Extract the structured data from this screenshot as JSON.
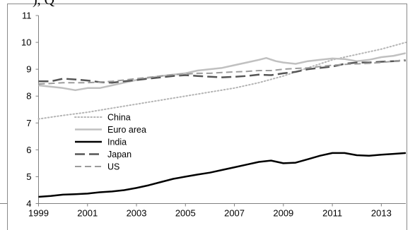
{
  "chart_data": {
    "type": "line",
    "title": "",
    "xlabel": "",
    "ylabel": "",
    "xlim": [
      1999,
      2014
    ],
    "ylim": [
      4,
      11
    ],
    "xticks": [
      "1999",
      "2001",
      "2003",
      "2005",
      "2007",
      "2009",
      "2011",
      "2013"
    ],
    "yticks": [
      "4",
      "5",
      "6",
      "7",
      "8",
      "9",
      "10",
      "11"
    ],
    "grid": false,
    "legend": "center-left",
    "top_fragment": "), Q",
    "series": [
      {
        "name": "China",
        "color": "#b4b4b4",
        "style": "dotted",
        "points": [
          [
            1999,
            7.15
          ],
          [
            2000,
            7.28
          ],
          [
            2001,
            7.4
          ],
          [
            2002,
            7.55
          ],
          [
            2003,
            7.7
          ],
          [
            2004,
            7.85
          ],
          [
            2005,
            8.0
          ],
          [
            2006,
            8.15
          ],
          [
            2007,
            8.3
          ],
          [
            2008,
            8.5
          ],
          [
            2009,
            8.75
          ],
          [
            2010,
            9.05
          ],
          [
            2011,
            9.35
          ],
          [
            2012,
            9.55
          ],
          [
            2013,
            9.75
          ],
          [
            2014,
            10.0
          ]
        ]
      },
      {
        "name": "Euro area",
        "color": "#c0c0c0",
        "style": "solid",
        "points": [
          [
            1999,
            8.4
          ],
          [
            1999.5,
            8.35
          ],
          [
            2000,
            8.3
          ],
          [
            2000.5,
            8.22
          ],
          [
            2001,
            8.3
          ],
          [
            2001.5,
            8.3
          ],
          [
            2002,
            8.4
          ],
          [
            2002.5,
            8.5
          ],
          [
            2003,
            8.6
          ],
          [
            2003.5,
            8.68
          ],
          [
            2004,
            8.75
          ],
          [
            2004.5,
            8.8
          ],
          [
            2005,
            8.85
          ],
          [
            2005.5,
            8.95
          ],
          [
            2006,
            9.0
          ],
          [
            2006.5,
            9.05
          ],
          [
            2007,
            9.15
          ],
          [
            2007.5,
            9.25
          ],
          [
            2008,
            9.35
          ],
          [
            2008.3,
            9.42
          ],
          [
            2008.7,
            9.3
          ],
          [
            2009,
            9.25
          ],
          [
            2009.5,
            9.2
          ],
          [
            2010,
            9.3
          ],
          [
            2010.5,
            9.35
          ],
          [
            2011,
            9.4
          ],
          [
            2011.5,
            9.38
          ],
          [
            2012,
            9.3
          ],
          [
            2012.5,
            9.35
          ],
          [
            2013,
            9.45
          ],
          [
            2013.5,
            9.5
          ],
          [
            2014,
            9.6
          ]
        ]
      },
      {
        "name": "India",
        "color": "#000000",
        "style": "solid",
        "points": [
          [
            1999,
            4.25
          ],
          [
            1999.5,
            4.28
          ],
          [
            2000,
            4.33
          ],
          [
            2000.5,
            4.35
          ],
          [
            2001,
            4.37
          ],
          [
            2001.5,
            4.42
          ],
          [
            2002,
            4.45
          ],
          [
            2002.5,
            4.5
          ],
          [
            2003,
            4.58
          ],
          [
            2003.5,
            4.68
          ],
          [
            2004,
            4.8
          ],
          [
            2004.5,
            4.92
          ],
          [
            2005,
            5.0
          ],
          [
            2005.5,
            5.08
          ],
          [
            2006,
            5.15
          ],
          [
            2006.5,
            5.25
          ],
          [
            2007,
            5.35
          ],
          [
            2007.5,
            5.45
          ],
          [
            2008,
            5.55
          ],
          [
            2008.5,
            5.6
          ],
          [
            2009,
            5.5
          ],
          [
            2009.5,
            5.52
          ],
          [
            2010,
            5.65
          ],
          [
            2010.5,
            5.78
          ],
          [
            2011,
            5.88
          ],
          [
            2011.5,
            5.88
          ],
          [
            2012,
            5.8
          ],
          [
            2012.5,
            5.78
          ],
          [
            2013,
            5.82
          ],
          [
            2013.5,
            5.85
          ],
          [
            2014,
            5.88
          ]
        ]
      },
      {
        "name": "Japan",
        "color": "#555555",
        "style": "longdash",
        "points": [
          [
            1999,
            8.55
          ],
          [
            1999.5,
            8.55
          ],
          [
            2000,
            8.65
          ],
          [
            2000.5,
            8.62
          ],
          [
            2001,
            8.58
          ],
          [
            2001.5,
            8.52
          ],
          [
            2002,
            8.5
          ],
          [
            2002.5,
            8.55
          ],
          [
            2003,
            8.6
          ],
          [
            2003.5,
            8.65
          ],
          [
            2004,
            8.7
          ],
          [
            2004.5,
            8.75
          ],
          [
            2005,
            8.78
          ],
          [
            2005.5,
            8.75
          ],
          [
            2006,
            8.72
          ],
          [
            2006.5,
            8.7
          ],
          [
            2007,
            8.72
          ],
          [
            2007.5,
            8.75
          ],
          [
            2008,
            8.8
          ],
          [
            2008.5,
            8.78
          ],
          [
            2009,
            8.85
          ],
          [
            2009.5,
            8.9
          ],
          [
            2010,
            9.0
          ],
          [
            2010.5,
            9.05
          ],
          [
            2011,
            9.1
          ],
          [
            2011.5,
            9.2
          ],
          [
            2012,
            9.25
          ],
          [
            2012.5,
            9.25
          ],
          [
            2013,
            9.28
          ],
          [
            2013.5,
            9.3
          ],
          [
            2014,
            9.33
          ]
        ]
      },
      {
        "name": "US",
        "color": "#9c9c9c",
        "style": "dashed",
        "points": [
          [
            1999,
            8.45
          ],
          [
            1999.5,
            8.47
          ],
          [
            2000,
            8.5
          ],
          [
            2000.5,
            8.5
          ],
          [
            2001,
            8.5
          ],
          [
            2001.5,
            8.52
          ],
          [
            2002,
            8.55
          ],
          [
            2002.5,
            8.6
          ],
          [
            2003,
            8.65
          ],
          [
            2003.5,
            8.7
          ],
          [
            2004,
            8.75
          ],
          [
            2004.5,
            8.8
          ],
          [
            2005,
            8.82
          ],
          [
            2005.5,
            8.85
          ],
          [
            2006,
            8.85
          ],
          [
            2006.5,
            8.88
          ],
          [
            2007,
            8.9
          ],
          [
            2007.5,
            8.92
          ],
          [
            2008,
            8.95
          ],
          [
            2008.5,
            8.95
          ],
          [
            2009,
            9.0
          ],
          [
            2009.5,
            9.03
          ],
          [
            2010,
            9.05
          ],
          [
            2010.5,
            9.1
          ],
          [
            2011,
            9.15
          ],
          [
            2011.5,
            9.18
          ],
          [
            2012,
            9.2
          ],
          [
            2012.5,
            9.22
          ],
          [
            2013,
            9.25
          ],
          [
            2013.5,
            9.3
          ],
          [
            2014,
            9.35
          ]
        ]
      }
    ]
  }
}
